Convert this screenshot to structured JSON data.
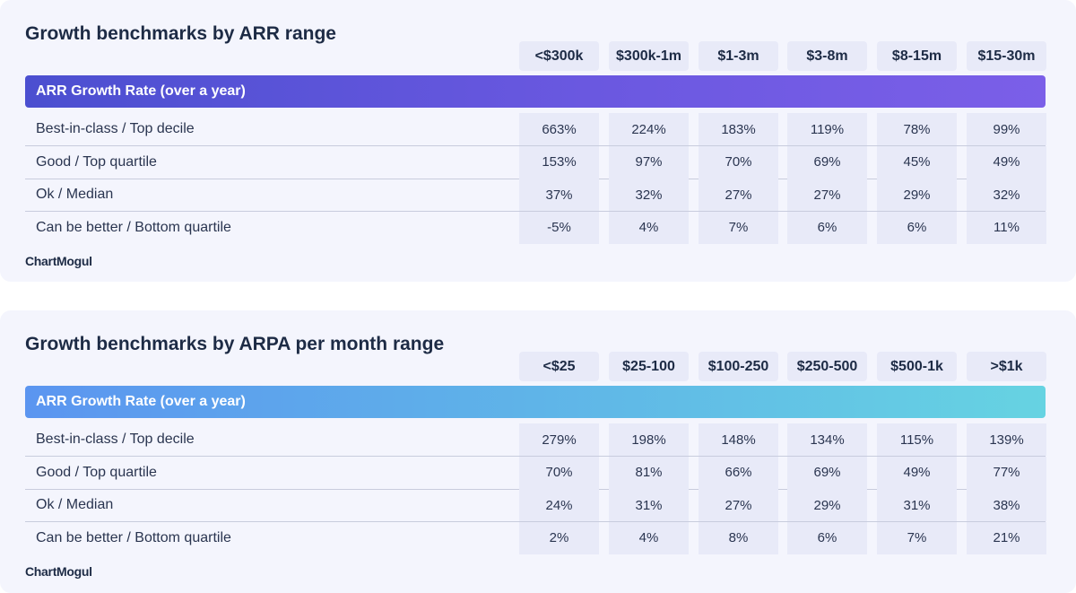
{
  "chart_data": [
    {
      "type": "table",
      "title": "Growth benchmarks by ARR range",
      "group_label": "ARR Growth Rate (over a year)",
      "columns": [
        "<$300k",
        "$300k-1m",
        "$1-3m",
        "$3-8m",
        "$8-15m",
        "$15-30m"
      ],
      "rows": [
        {
          "label": "Best-in-class / Top decile",
          "values": [
            "663%",
            "224%",
            "183%",
            "119%",
            "78%",
            "99%"
          ]
        },
        {
          "label": "Good / Top quartile",
          "values": [
            "153%",
            "97%",
            "70%",
            "69%",
            "45%",
            "49%"
          ]
        },
        {
          "label": "Ok / Median",
          "values": [
            "37%",
            "32%",
            "27%",
            "27%",
            "29%",
            "32%"
          ]
        },
        {
          "label": "Can be better / Bottom quartile",
          "values": [
            "-5%",
            "4%",
            "7%",
            "6%",
            "6%",
            "11%"
          ]
        }
      ],
      "logo": "ChartMogul",
      "band_colors": [
        "#4b4fd0",
        "#7b5fe8"
      ]
    },
    {
      "type": "table",
      "title": "Growth benchmarks by ARPA per month range",
      "group_label": "ARR Growth Rate (over a year)",
      "columns": [
        "<$25",
        "$25-100",
        "$100-250",
        "$250-500",
        "$500-1k",
        ">$1k"
      ],
      "rows": [
        {
          "label": "Best-in-class / Top decile",
          "values": [
            "279%",
            "198%",
            "148%",
            "134%",
            "115%",
            "139%"
          ]
        },
        {
          "label": "Good / Top quartile",
          "values": [
            "70%",
            "81%",
            "66%",
            "69%",
            "49%",
            "77%"
          ]
        },
        {
          "label": "Ok / Median",
          "values": [
            "24%",
            "31%",
            "27%",
            "29%",
            "31%",
            "38%"
          ]
        },
        {
          "label": "Can be better / Bottom quartile",
          "values": [
            "2%",
            "4%",
            "8%",
            "6%",
            "7%",
            "21%"
          ]
        }
      ],
      "logo": "ChartMogul",
      "band_colors": [
        "#5b95f0",
        "#66d3e2"
      ]
    }
  ]
}
